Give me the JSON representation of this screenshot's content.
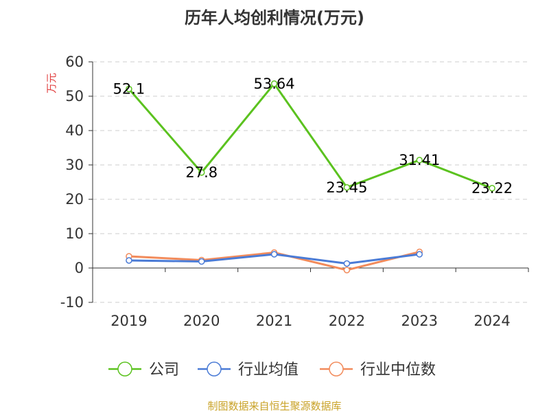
{
  "chart_data": {
    "type": "line",
    "title": "历年人均创利情况(万元)",
    "ylabel": "万元",
    "ylim": [
      -10,
      60
    ],
    "yticks": [
      -10,
      0,
      10,
      20,
      30,
      40,
      50,
      60
    ],
    "categories": [
      "2019",
      "2020",
      "2021",
      "2022",
      "2023",
      "2024"
    ],
    "grid": true,
    "legend_position": "bottom",
    "series": [
      {
        "name": "公司",
        "color": "#5bc21f",
        "values": [
          52.1,
          27.8,
          53.64,
          23.45,
          31.41,
          23.22
        ],
        "labels": [
          "52.1",
          "27.8",
          "53.64",
          "23.45",
          "31.41",
          "23.22"
        ]
      },
      {
        "name": "行业均值",
        "color": "#4a7bd6",
        "values": [
          2.2,
          1.9,
          4.0,
          1.3,
          4.0,
          null
        ]
      },
      {
        "name": "行业中位数",
        "color": "#f28b5b",
        "values": [
          3.4,
          2.3,
          4.5,
          -0.6,
          4.7,
          null
        ]
      }
    ]
  },
  "source_note": "制图数据来自恒生聚源数据库",
  "colors": {
    "axis": "#333333",
    "grid": "#cccccc",
    "ylabel": "#e03c3c"
  }
}
